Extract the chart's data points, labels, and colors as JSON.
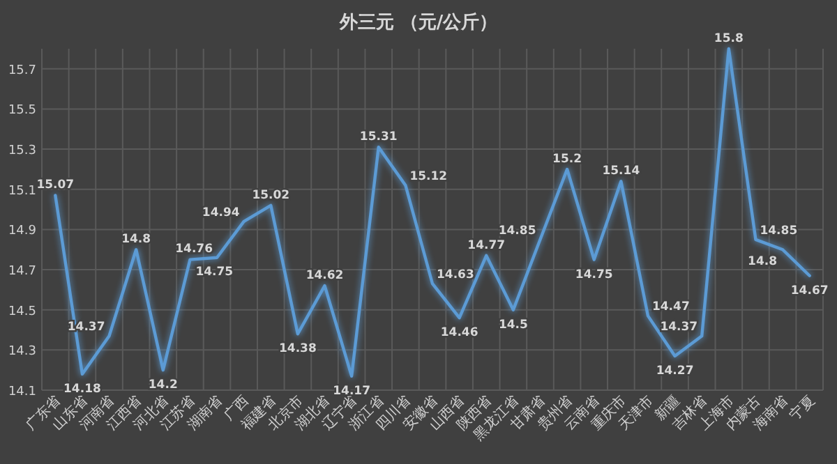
{
  "chart_data": {
    "type": "line",
    "title": "外三元  （元/公斤）",
    "categories": [
      "广东省",
      "山东省",
      "河南省",
      "江西省",
      "河北省",
      "江苏省",
      "湖南省",
      "广西",
      "福建省",
      "北京市",
      "湖北省",
      "辽宁省",
      "浙江省",
      "四川省",
      "安徽省",
      "山西省",
      "陕西省",
      "黑龙江省",
      "甘肃省",
      "贵州省",
      "云南省",
      "重庆市",
      "天津市",
      "新疆",
      "吉林省",
      "上海市",
      "内蒙古",
      "海南省",
      "宁夏"
    ],
    "series": [
      {
        "color": "#5b9bd5",
        "values": [
          15.07,
          14.18,
          14.37,
          14.8,
          14.2,
          14.75,
          14.76,
          14.94,
          15.02,
          14.38,
          14.62,
          14.17,
          15.31,
          15.12,
          14.63,
          14.46,
          14.77,
          14.5,
          14.85,
          15.2,
          14.75,
          15.14,
          14.47,
          14.27,
          14.37,
          15.8,
          14.85,
          14.8,
          14.67
        ]
      }
    ],
    "ylim": [
      14.1,
      15.8
    ],
    "yticks": [
      14.1,
      14.3,
      14.5,
      14.7,
      14.9,
      15.1,
      15.3,
      15.5,
      15.7
    ],
    "grid": true,
    "data_labels": true,
    "marker": "none",
    "line_style": "solid"
  }
}
